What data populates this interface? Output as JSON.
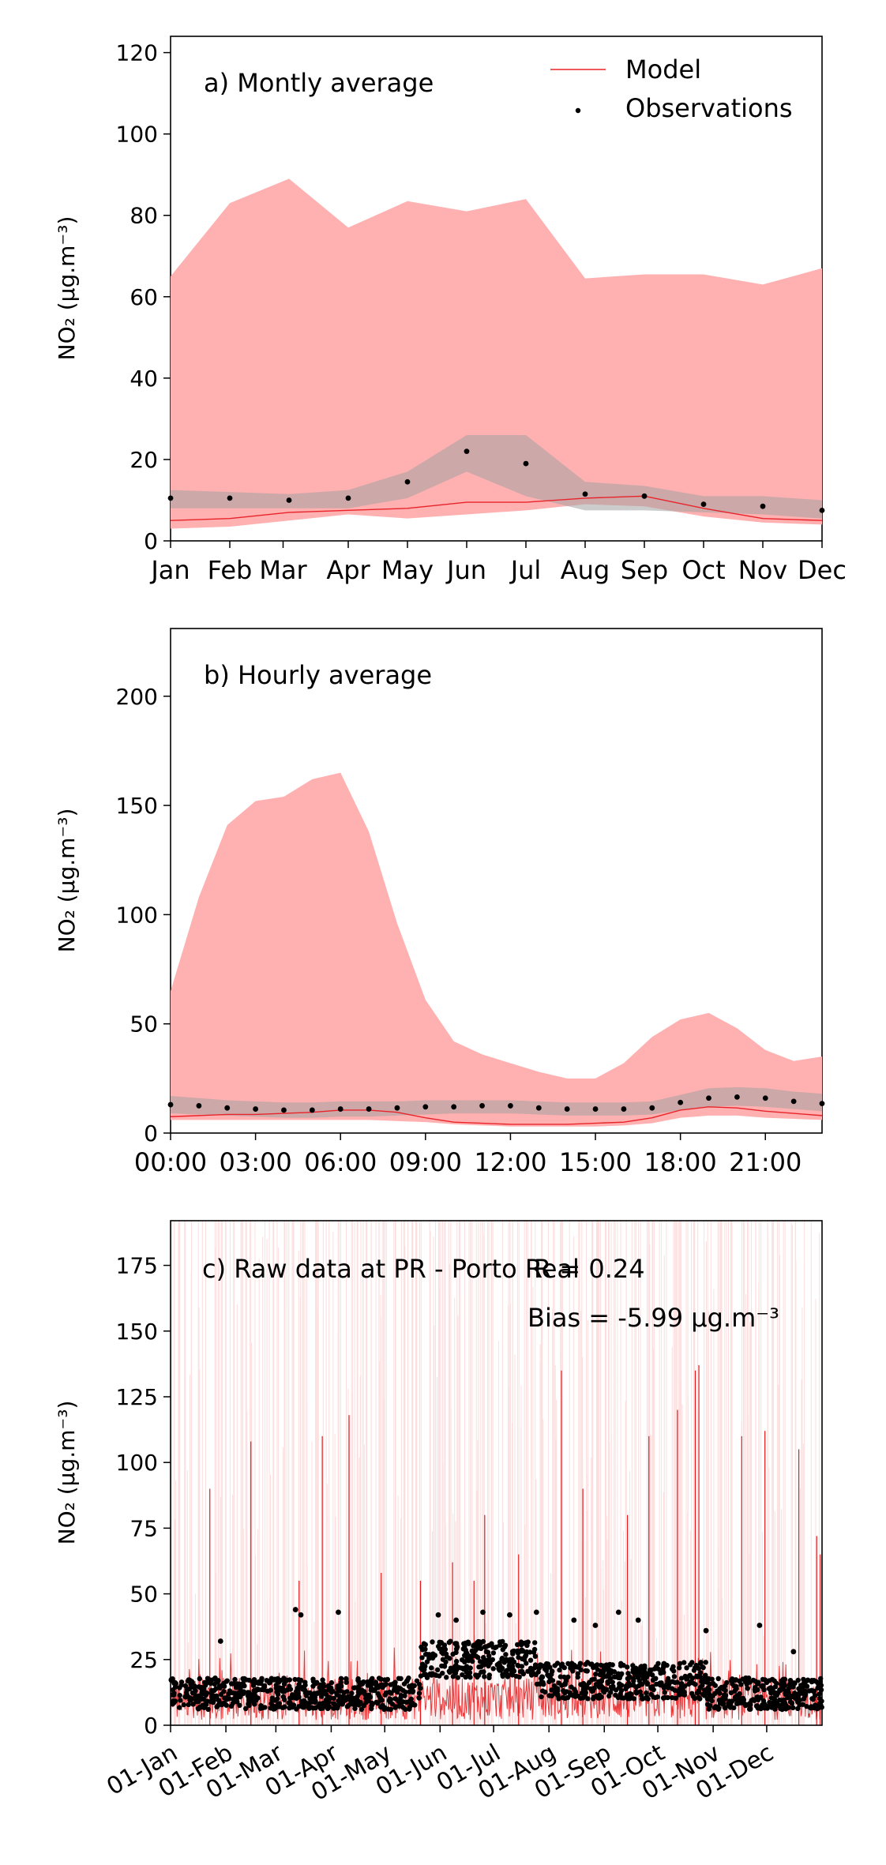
{
  "legend": {
    "model_label": "Model",
    "obs_label": "Observations"
  },
  "colors": {
    "model_line": "#e8242a",
    "model_band": "#ffb0b0",
    "obs_band": "#a3a3a3",
    "obs_point": "#000000",
    "raw_model": "#e41a1c"
  },
  "chart_data": [
    {
      "id": "monthly",
      "type": "line",
      "title": "a) Montly average",
      "ylabel": "NO₂ (μg.m⁻³)",
      "categories": [
        "Jan",
        "Feb",
        "Mar",
        "Apr",
        "May",
        "Jun",
        "Jul",
        "Aug",
        "Sep",
        "Oct",
        "Nov",
        "Dec"
      ],
      "x_positions": [
        0,
        1,
        2,
        3,
        4,
        5,
        6,
        7,
        8,
        9,
        10,
        11
      ],
      "x_tick_positions": [
        0,
        1,
        1.9,
        3,
        4,
        5,
        6,
        7,
        8,
        9,
        10,
        11
      ],
      "xlim": [
        0,
        11
      ],
      "ylim": [
        0,
        124
      ],
      "yticks": [
        0,
        20,
        40,
        60,
        80,
        100,
        120
      ],
      "series": [
        {
          "name": "Model",
          "values": [
            5,
            5.5,
            7,
            7.5,
            8,
            9.5,
            9.5,
            10.5,
            11,
            8,
            5.5,
            5
          ]
        },
        {
          "name": "Observations",
          "values": [
            10.5,
            10.5,
            10,
            10.5,
            14.5,
            22,
            19,
            11.5,
            11,
            9,
            8.5,
            7.5
          ]
        }
      ],
      "model_band_upper": [
        65,
        83,
        89,
        77,
        83.5,
        81,
        84,
        64.5,
        65.5,
        65.5,
        63,
        67
      ],
      "model_band_lower": [
        3,
        3.5,
        5,
        6.5,
        5.5,
        6.5,
        7.5,
        9,
        8.5,
        6,
        4.5,
        4
      ],
      "obs_band_upper": [
        12.5,
        12,
        11.5,
        12.5,
        17,
        26,
        26,
        14.5,
        13.5,
        11,
        11,
        10
      ],
      "obs_band_lower": [
        8,
        8,
        8,
        8,
        10.5,
        17,
        11,
        7.5,
        7.5,
        7,
        6.5,
        5.5
      ]
    },
    {
      "id": "hourly",
      "type": "line",
      "title": "b) Hourly average",
      "ylabel": "NO₂ (μg.m⁻³)",
      "categories": [
        "00:00",
        "03:00",
        "06:00",
        "09:00",
        "12:00",
        "15:00",
        "18:00",
        "21:00"
      ],
      "x_tick_positions": [
        0,
        3,
        6,
        9,
        12,
        15,
        18,
        21
      ],
      "xlim": [
        0,
        23
      ],
      "ylim": [
        0,
        231
      ],
      "yticks": [
        0,
        50,
        100,
        150,
        200
      ],
      "x": [
        0,
        1,
        2,
        3,
        4,
        5,
        6,
        7,
        8,
        9,
        10,
        11,
        12,
        13,
        14,
        15,
        16,
        17,
        18,
        19,
        20,
        21,
        22,
        23
      ],
      "series": [
        {
          "name": "Model",
          "values": [
            7.5,
            8,
            8.5,
            8.5,
            9,
            9.5,
            10.5,
            10.5,
            9.5,
            7,
            5,
            4.5,
            4,
            4,
            4,
            4.5,
            5,
            7,
            10.5,
            12,
            11.5,
            10,
            9,
            8
          ]
        },
        {
          "name": "Observations",
          "values": [
            13,
            12.5,
            11.5,
            11,
            10.5,
            10.5,
            11,
            11,
            11.5,
            12,
            12,
            12.5,
            12.5,
            11.5,
            11,
            11,
            11,
            11.5,
            14,
            16,
            16.5,
            16,
            14.5,
            13.5
          ]
        }
      ],
      "model_band_upper": [
        65,
        108,
        141,
        152,
        154,
        162,
        165,
        138,
        96,
        61,
        42,
        36,
        32,
        28,
        25,
        25,
        32,
        44,
        52,
        55,
        48,
        38,
        33,
        35
      ],
      "model_band_lower": [
        6,
        6,
        6,
        6,
        6,
        6,
        6,
        6,
        5.5,
        5,
        4,
        3.5,
        3,
        3,
        3,
        3,
        3.5,
        4.5,
        7,
        8,
        8,
        7,
        6.5,
        6
      ],
      "obs_band_upper": [
        17,
        16,
        15,
        14.5,
        14,
        14,
        14.5,
        14.5,
        14.5,
        15,
        15,
        15,
        15,
        14.5,
        14,
        14,
        14,
        14.5,
        17.5,
        20.5,
        21,
        20.5,
        19,
        18
      ],
      "obs_band_lower": [
        9,
        8.5,
        8,
        7.5,
        7,
        7,
        7.5,
        7.5,
        8,
        8.5,
        9,
        9,
        9,
        8.5,
        8,
        8,
        8,
        8.5,
        10.5,
        12,
        12.5,
        12,
        11,
        10
      ]
    },
    {
      "id": "raw",
      "type": "line",
      "title": "c) Raw data at PR - Porto Real",
      "r_text": "R = 0.24",
      "bias_text": "Bias = -5.99 μg.m⁻³",
      "ylabel": "NO₂ (μg.m⁻³)",
      "categories": [
        "01-Jan",
        "01-Feb",
        "01-Mar",
        "01-Apr",
        "01-May",
        "01-Jun",
        "01-Jul",
        "01-Aug",
        "01-Sep",
        "01-Oct",
        "01-Nov",
        "01-Dec"
      ],
      "x_tick_days": [
        0,
        31,
        59,
        90,
        120,
        151,
        181,
        212,
        243,
        273,
        304,
        334
      ],
      "xlim_days": [
        0,
        365
      ],
      "ylim": [
        0,
        192
      ],
      "yticks": [
        0,
        25,
        50,
        75,
        100,
        125,
        150,
        175
      ],
      "series": [
        {
          "name": "Model",
          "peaks": [
            {
              "day": 22,
              "value": 90
            },
            {
              "day": 45,
              "value": 108
            },
            {
              "day": 72,
              "value": 55
            },
            {
              "day": 85,
              "value": 110
            },
            {
              "day": 100,
              "value": 118
            },
            {
              "day": 118,
              "value": 58
            },
            {
              "day": 140,
              "value": 55
            },
            {
              "day": 158,
              "value": 62
            },
            {
              "day": 170,
              "value": 55
            },
            {
              "day": 176,
              "value": 80
            },
            {
              "day": 195,
              "value": 65
            },
            {
              "day": 219,
              "value": 135
            },
            {
              "day": 231,
              "value": 90
            },
            {
              "day": 256,
              "value": 80
            },
            {
              "day": 268,
              "value": 110
            },
            {
              "day": 284,
              "value": 120
            },
            {
              "day": 294,
              "value": 135
            },
            {
              "day": 296,
              "value": 137
            },
            {
              "day": 320,
              "value": 110
            },
            {
              "day": 333,
              "value": 112
            },
            {
              "day": 352,
              "value": 105
            },
            {
              "day": 362,
              "value": 72
            },
            {
              "day": 364,
              "value": 65
            }
          ]
        },
        {
          "name": "Observations",
          "peaks": [
            {
              "day": 28,
              "value": 32
            },
            {
              "day": 70,
              "value": 44
            },
            {
              "day": 73,
              "value": 42
            },
            {
              "day": 94,
              "value": 43
            },
            {
              "day": 150,
              "value": 42
            },
            {
              "day": 160,
              "value": 40
            },
            {
              "day": 175,
              "value": 43
            },
            {
              "day": 190,
              "value": 42
            },
            {
              "day": 205,
              "value": 43
            },
            {
              "day": 226,
              "value": 40
            },
            {
              "day": 238,
              "value": 38
            },
            {
              "day": 251,
              "value": 43
            },
            {
              "day": 262,
              "value": 40
            },
            {
              "day": 300,
              "value": 36
            },
            {
              "day": 330,
              "value": 38
            },
            {
              "day": 349,
              "value": 28
            }
          ]
        }
      ]
    }
  ]
}
